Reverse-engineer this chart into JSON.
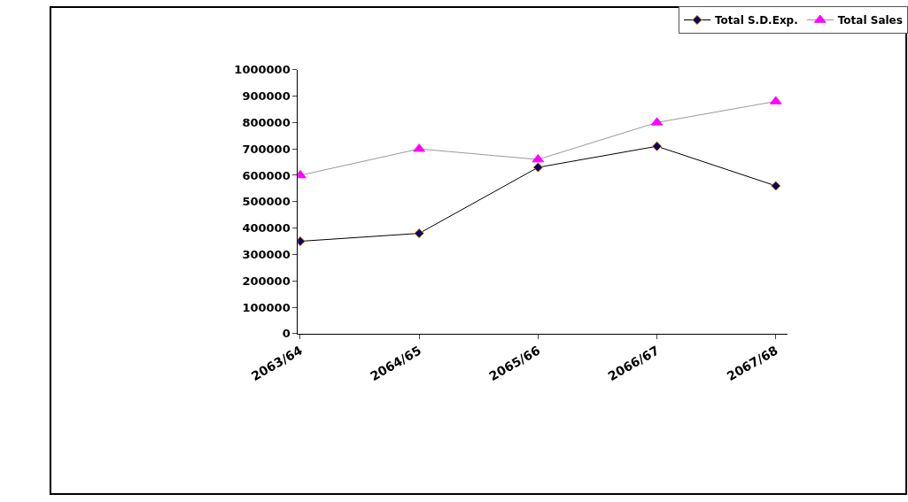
{
  "chart_data": {
    "type": "line",
    "categories": [
      "2063/64",
      "2064/65",
      "2065/66",
      "2066/67",
      "2067/68"
    ],
    "series": [
      {
        "name": "Total S.D.Exp.",
        "color": "#000066",
        "marker": "diamond",
        "values": [
          350000,
          380000,
          630000,
          710000,
          560000
        ]
      },
      {
        "name": "Total Sales",
        "color": "#ff00ff",
        "marker": "triangle",
        "values": [
          600000,
          700000,
          660000,
          800000,
          880000
        ]
      }
    ],
    "ylim": [
      0,
      1000000
    ],
    "yticks": [
      0,
      100000,
      200000,
      300000,
      400000,
      500000,
      600000,
      700000,
      800000,
      900000,
      1000000
    ],
    "legend": "top right"
  }
}
